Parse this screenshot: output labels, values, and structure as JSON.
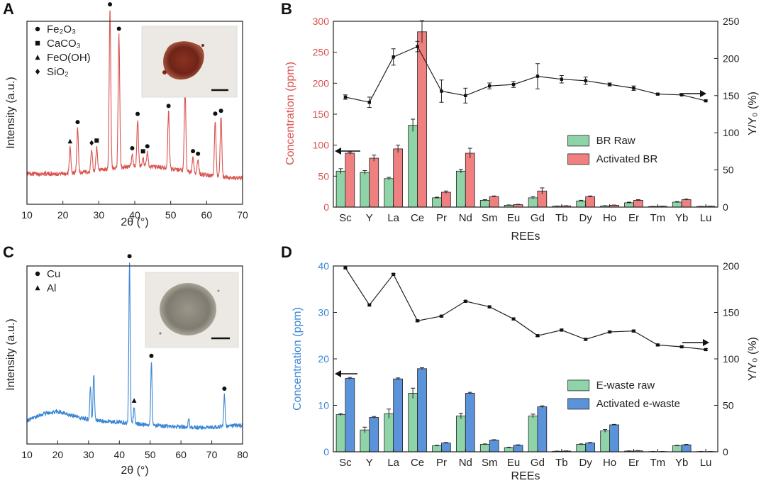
{
  "chart_data": [
    {
      "panel": "A",
      "type": "line",
      "xlabel": "2θ (°)",
      "ylabel": "Intensity (a.u.)",
      "xlim": [
        10,
        70
      ],
      "xticks": [
        "10",
        "20",
        "30",
        "40",
        "50",
        "60",
        "70"
      ],
      "line_color": "#d9534f",
      "legend": [
        {
          "marker": "circle",
          "label": "Fe₂O₃"
        },
        {
          "marker": "square",
          "label": "CaCO₃"
        },
        {
          "marker": "triangle",
          "label": "FeO(OH)"
        },
        {
          "marker": "diamond",
          "label": "SiO₂"
        }
      ],
      "inset": {
        "description": "red-brown powder photo",
        "color": "#7a2a1c"
      },
      "peaks": [
        {
          "x": 22.0,
          "h": 0.15,
          "marker": "triangle"
        },
        {
          "x": 24.1,
          "h": 0.26,
          "marker": "circle"
        },
        {
          "x": 28.0,
          "h": 0.13,
          "marker": "diamond"
        },
        {
          "x": 29.4,
          "h": 0.14,
          "marker": "square"
        },
        {
          "x": 33.1,
          "h": 0.93,
          "marker": "circle"
        },
        {
          "x": 35.6,
          "h": 0.78,
          "marker": "circle"
        },
        {
          "x": 39.3,
          "h": 0.07,
          "marker": "circle"
        },
        {
          "x": 40.8,
          "h": 0.27,
          "marker": "circle"
        },
        {
          "x": 42.3,
          "h": 0.05,
          "marker": "square"
        },
        {
          "x": 43.5,
          "h": 0.08,
          "marker": "circle"
        },
        {
          "x": 49.4,
          "h": 0.33,
          "marker": "circle"
        },
        {
          "x": 54.0,
          "h": 0.48,
          "marker": "circle"
        },
        {
          "x": 56.2,
          "h": 0.09,
          "marker": "circle"
        },
        {
          "x": 57.6,
          "h": 0.08,
          "marker": "circle"
        },
        {
          "x": 62.4,
          "h": 0.33,
          "marker": "circle"
        },
        {
          "x": 64.0,
          "h": 0.35,
          "marker": "circle"
        }
      ]
    },
    {
      "panel": "B",
      "type": "bar",
      "xlabel": "REEs",
      "ylabel": "Concentration (ppm)",
      "ylabel_color": "#d9534f",
      "y2label": "Y/Y₀ (%)",
      "categories": [
        "Sc",
        "Y",
        "La",
        "Ce",
        "Pr",
        "Nd",
        "Sm",
        "Eu",
        "Gd",
        "Tb",
        "Dy",
        "Ho",
        "Er",
        "Tm",
        "Yb",
        "Lu"
      ],
      "ylim": [
        0,
        300
      ],
      "yticks": [
        "0",
        "50",
        "100",
        "150",
        "200",
        "250",
        "300"
      ],
      "y2lim": [
        0,
        250
      ],
      "y2ticks": [
        "0",
        "50",
        "100",
        "150",
        "200",
        "250"
      ],
      "series": [
        {
          "name": "BR Raw",
          "color": "#8fd3a8",
          "values": [
            58,
            56,
            46,
            132,
            15,
            58,
            11,
            3,
            15,
            1.5,
            10,
            2,
            7,
            1,
            8,
            1
          ],
          "errors": [
            4,
            3,
            2,
            10,
            1,
            3,
            1,
            0.5,
            2,
            0.3,
            1,
            0.3,
            1,
            0.2,
            1,
            0.2
          ]
        },
        {
          "name": "Activated BR",
          "color": "#f08080",
          "values": [
            87,
            79,
            94,
            283,
            24,
            87,
            17,
            4,
            26,
            2,
            17,
            3,
            11,
            1.5,
            12,
            1.5
          ],
          "errors": [
            2,
            5,
            6,
            18,
            2,
            8,
            1,
            0.5,
            5,
            0.3,
            1,
            0.3,
            1,
            0.2,
            1,
            0.2
          ]
        }
      ],
      "ratio": {
        "values": [
          148,
          141,
          202,
          216,
          156,
          150,
          163,
          165,
          176,
          172,
          170,
          165,
          160,
          152,
          151,
          143
        ],
        "errors": [
          3,
          7,
          11,
          7,
          15,
          10,
          4,
          4,
          17,
          5,
          5,
          2,
          3,
          1,
          1,
          1
        ]
      },
      "legend_placement": "right-middle",
      "arrows": [
        "left",
        "right"
      ]
    },
    {
      "panel": "C",
      "type": "line",
      "xlabel": "2θ (°)",
      "ylabel": "Intensity (a.u.)",
      "xlim": [
        10,
        80
      ],
      "xticks": [
        "10",
        "20",
        "30",
        "40",
        "50",
        "60",
        "70",
        "80"
      ],
      "line_color": "#3a86d4",
      "legend": [
        {
          "marker": "circle",
          "label": "Cu"
        },
        {
          "marker": "triangle",
          "label": "Al"
        }
      ],
      "inset": {
        "description": "grey powder photo",
        "color": "#8a8578"
      },
      "peaks": [
        {
          "x": 30.6,
          "h": 0.2,
          "marker": "none"
        },
        {
          "x": 31.7,
          "h": 0.28,
          "marker": "none"
        },
        {
          "x": 43.3,
          "h": 0.97,
          "marker": "circle"
        },
        {
          "x": 44.8,
          "h": 0.1,
          "marker": "triangle"
        },
        {
          "x": 50.4,
          "h": 0.38,
          "marker": "circle"
        },
        {
          "x": 62.5,
          "h": 0.05,
          "marker": "none"
        },
        {
          "x": 74.1,
          "h": 0.19,
          "marker": "circle"
        }
      ]
    },
    {
      "panel": "D",
      "type": "bar",
      "xlabel": "REEs",
      "ylabel": "Concentration (ppm)",
      "ylabel_color": "#3a86d4",
      "y2label": "Y/Y₀ (%)",
      "categories": [
        "Sc",
        "Y",
        "La",
        "Ce",
        "Pr",
        "Nd",
        "Sm",
        "Eu",
        "Gd",
        "Tb",
        "Dy",
        "Ho",
        "Er",
        "Tm",
        "Yb",
        "Lu"
      ],
      "ylim": [
        0,
        40
      ],
      "yticks": [
        "0",
        "10",
        "20",
        "30",
        "40"
      ],
      "y2lim": [
        0,
        200
      ],
      "y2ticks": [
        "0",
        "50",
        "100",
        "150",
        "200"
      ],
      "series": [
        {
          "name": "E-waste raw",
          "color": "#8fd3a8",
          "values": [
            8.0,
            4.7,
            8.2,
            12.6,
            1.3,
            7.7,
            1.6,
            0.9,
            7.7,
            0.1,
            1.6,
            4.5,
            0.15,
            0.05,
            1.3,
            0.05
          ],
          "errors": [
            0.2,
            0.6,
            1.0,
            1.1,
            0.1,
            0.6,
            0.1,
            0.1,
            0.4,
            0.05,
            0.1,
            0.3,
            0.05,
            0.02,
            0.1,
            0.02
          ]
        },
        {
          "name": "Activated e-waste",
          "color": "#5b93db",
          "values": [
            15.8,
            7.4,
            15.7,
            17.9,
            1.9,
            12.6,
            2.5,
            1.4,
            9.7,
            0.15,
            1.9,
            5.8,
            0.2,
            0.05,
            1.5,
            0.05
          ],
          "errors": [
            0.2,
            0.2,
            0.2,
            0.2,
            0.1,
            0.2,
            0.1,
            0.1,
            0.2,
            0.05,
            0.1,
            0.1,
            0.05,
            0.02,
            0.1,
            0.02
          ]
        }
      ],
      "ratio": {
        "values": [
          198,
          158,
          191,
          141,
          146,
          162,
          156,
          143,
          125,
          131,
          121,
          129,
          130,
          115,
          113,
          110
        ],
        "errors": [
          1,
          1,
          1,
          1,
          1,
          1,
          1,
          1,
          1,
          1,
          1,
          1,
          1,
          1,
          1,
          1
        ]
      },
      "legend_placement": "right-middle",
      "arrows": [
        "left",
        "right"
      ]
    }
  ]
}
